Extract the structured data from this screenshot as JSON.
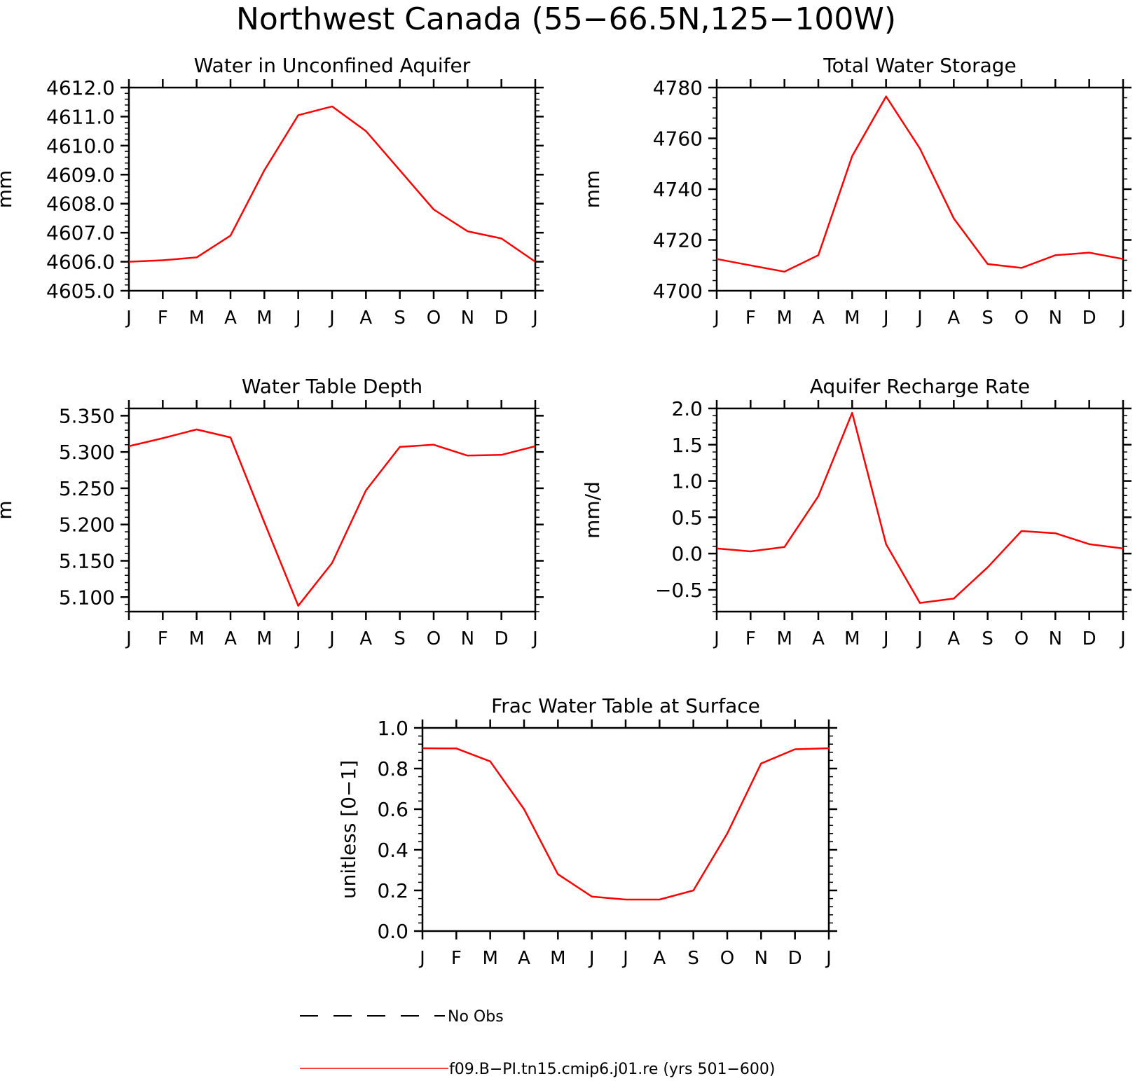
{
  "figure_title": "Northwest Canada (55−66.5N,125−100W)",
  "months": [
    "J",
    "F",
    "M",
    "A",
    "M",
    "J",
    "J",
    "A",
    "S",
    "O",
    "N",
    "D",
    "J"
  ],
  "legend": {
    "items": [
      {
        "label": "No Obs",
        "style": "dashed",
        "color": "#000000"
      },
      {
        "label": "f09.B−PI.tn15.cmip6.j01.re (yrs 501−600)",
        "style": "solid",
        "color": "#ff0000"
      }
    ]
  },
  "chart_data": [
    {
      "type": "line",
      "title": "Water in Unconfined Aquifer",
      "ylabel": "mm",
      "ylim": [
        4605.0,
        4612.0
      ],
      "yticks": [
        4605.0,
        4606.0,
        4607.0,
        4608.0,
        4609.0,
        4610.0,
        4611.0,
        4612.0
      ],
      "ytick_labels": [
        "4605.0",
        "4606.0",
        "4607.0",
        "4608.0",
        "4609.0",
        "4610.0",
        "4611.0",
        "4612.0"
      ],
      "series": [
        {
          "color": "#ff0000",
          "values": [
            4606.0,
            4606.05,
            4606.15,
            4606.9,
            4609.15,
            4611.05,
            4611.35,
            4610.5,
            4609.15,
            4607.8,
            4607.05,
            4606.8,
            4606.0
          ]
        }
      ]
    },
    {
      "type": "line",
      "title": "Total Water Storage",
      "ylabel": "mm",
      "ylim": [
        4700,
        4780
      ],
      "yticks": [
        4700,
        4720,
        4740,
        4760,
        4780
      ],
      "ytick_labels": [
        "4700",
        "4720",
        "4740",
        "4760",
        "4780"
      ],
      "series": [
        {
          "color": "#ff0000",
          "values": [
            4712.5,
            4710.0,
            4707.5,
            4714.0,
            4753.0,
            4776.5,
            4756.0,
            4728.5,
            4710.5,
            4709.0,
            4714.0,
            4715.0,
            4712.5
          ]
        }
      ]
    },
    {
      "type": "line",
      "title": "Water Table Depth",
      "ylabel": "m",
      "ylim": [
        5.08,
        5.36
      ],
      "yticks": [
        5.1,
        5.15,
        5.2,
        5.25,
        5.3,
        5.35
      ],
      "ytick_labels": [
        "5.100",
        "5.150",
        "5.200",
        "5.250",
        "5.300",
        "5.350"
      ],
      "series": [
        {
          "color": "#ff0000",
          "values": [
            5.308,
            5.319,
            5.331,
            5.32,
            5.203,
            5.088,
            5.147,
            5.247,
            5.307,
            5.31,
            5.295,
            5.296,
            5.308
          ]
        }
      ]
    },
    {
      "type": "line",
      "title": "Aquifer Recharge Rate",
      "ylabel": "mm/d",
      "ylim": [
        -0.8,
        2.0
      ],
      "yticks": [
        -0.5,
        0.0,
        0.5,
        1.0,
        1.5,
        2.0
      ],
      "ytick_labels": [
        "−0.5",
        "0.0",
        "0.5",
        "1.0",
        "1.5",
        "2.0"
      ],
      "series": [
        {
          "color": "#ff0000",
          "values": [
            0.07,
            0.03,
            0.09,
            0.79,
            1.94,
            0.13,
            -0.68,
            -0.62,
            -0.19,
            0.31,
            0.28,
            0.13,
            0.07
          ]
        }
      ]
    },
    {
      "type": "line",
      "title": "Frac Water Table at Surface",
      "ylabel": "unitless [0−1]",
      "ylim": [
        0.0,
        1.0
      ],
      "yticks": [
        0.0,
        0.2,
        0.4,
        0.6,
        0.8,
        1.0
      ],
      "ytick_labels": [
        "0.0",
        "0.2",
        "0.4",
        "0.6",
        "0.8",
        "1.0"
      ],
      "series": [
        {
          "color": "#ff0000",
          "values": [
            0.9,
            0.899,
            0.835,
            0.6,
            0.28,
            0.17,
            0.155,
            0.155,
            0.2,
            0.48,
            0.825,
            0.895,
            0.9
          ]
        }
      ]
    }
  ]
}
